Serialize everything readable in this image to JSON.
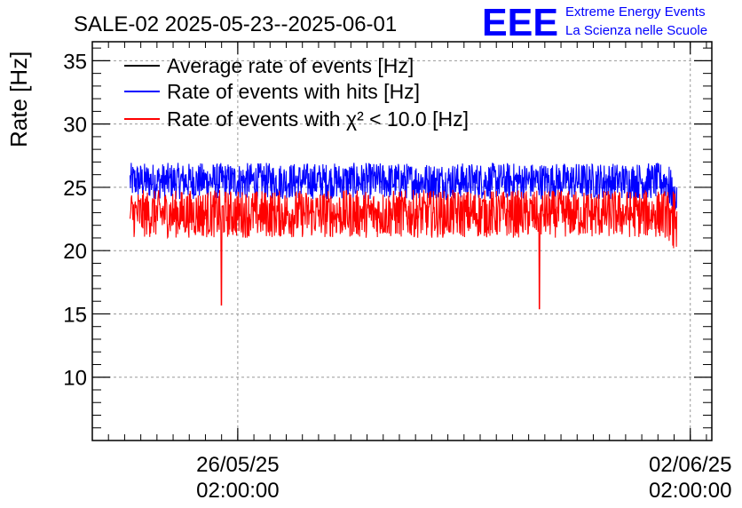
{
  "chart_data": {
    "type": "line",
    "title": "SALE-02 2025-05-23--2025-06-01",
    "ylabel": "Rate [Hz]",
    "xlabel": "",
    "ylim": [
      5,
      36.5
    ],
    "yticks": [
      10,
      15,
      20,
      25,
      30,
      35
    ],
    "xlim": [
      "2025-05-23 20:00:00",
      "2025-06-02 10:00:00"
    ],
    "xtick_labels": [
      {
        "x": "2025-05-26 02:00:00",
        "date": "26/05/25",
        "time": "02:00:00"
      },
      {
        "x": "2025-06-02 02:00:00",
        "date": "02/06/25",
        "time": "02:00:00"
      }
    ],
    "grid": true,
    "legend_position": "top-left",
    "series": [
      {
        "name": "Average rate of events [Hz]",
        "color": "#000000",
        "values": []
      },
      {
        "name": "Rate of events with hits [Hz]",
        "color": "#0000ff",
        "x_start": "2025-05-24 10:00:00",
        "x_end": "2025-06-01 21:00:00",
        "mean": 25.5,
        "band_min": 24.0,
        "band_max": 27.2
      },
      {
        "name": "Rate of events with χ² < 10.0 [Hz]",
        "color": "#ff0000",
        "x_start": "2025-05-24 10:00:00",
        "x_end": "2025-06-01 21:00:00",
        "mean": 22.9,
        "band_min": 20.8,
        "band_max": 25.0,
        "dips": [
          {
            "x": "2025-05-25 20:00:00",
            "y": 15.7
          },
          {
            "x": "2025-05-30 18:00:00",
            "y": 15.4
          }
        ]
      }
    ]
  },
  "logo": {
    "mark": "EEE",
    "line1": "Extreme Energy Events",
    "line2": "La Scienza nelle Scuole",
    "color": "#0000ff"
  }
}
